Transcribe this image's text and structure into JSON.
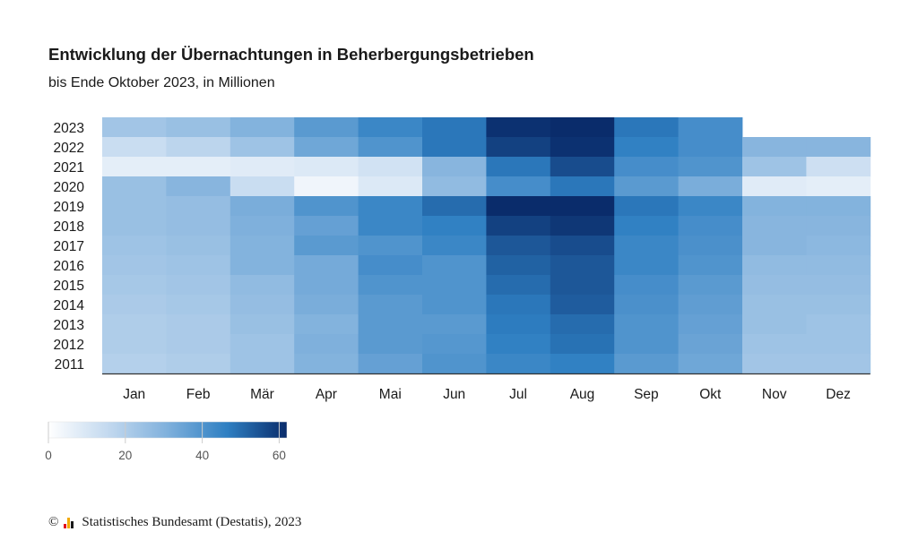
{
  "title": "Entwicklung der Übernachtungen in Beherbergungsbetrieben",
  "subtitle": "bis Ende Oktober 2023, in Millionen",
  "footer": {
    "copyright_symbol": "©",
    "source": "Statistisches Bundesamt (Destatis), 2023",
    "logo_colors": [
      "#e2001a",
      "#f2a900",
      "#1a1a1a"
    ]
  },
  "chart_data": {
    "type": "heatmap",
    "title": "Entwicklung der Übernachtungen in Beherbergungsbetrieben",
    "subtitle": "bis Ende Oktober 2023, in Millionen",
    "x_categories": [
      "Jan",
      "Feb",
      "Mär",
      "Apr",
      "Mai",
      "Jun",
      "Jul",
      "Aug",
      "Sep",
      "Okt",
      "Nov",
      "Dez"
    ],
    "y_categories": [
      "2023",
      "2022",
      "2021",
      "2020",
      "2019",
      "2018",
      "2017",
      "2016",
      "2015",
      "2014",
      "2013",
      "2012",
      "2011"
    ],
    "values": [
      [
        23,
        25,
        30,
        38,
        44,
        48,
        61,
        62,
        48,
        42,
        null,
        null
      ],
      [
        14,
        17,
        24,
        34,
        40,
        48,
        58,
        61,
        46,
        42,
        29,
        29
      ],
      [
        7,
        7,
        8,
        9,
        12,
        29,
        48,
        56,
        42,
        40,
        24,
        13
      ],
      [
        25,
        29,
        14,
        4,
        9,
        27,
        42,
        48,
        38,
        32,
        8,
        7
      ],
      [
        25,
        26,
        32,
        40,
        44,
        50,
        63,
        63,
        48,
        44,
        30,
        30
      ],
      [
        25,
        26,
        31,
        36,
        44,
        46,
        58,
        60,
        46,
        42,
        29,
        29
      ],
      [
        24,
        25,
        30,
        38,
        40,
        44,
        54,
        56,
        44,
        41,
        29,
        28
      ],
      [
        23,
        24,
        30,
        33,
        42,
        40,
        52,
        54,
        44,
        40,
        27,
        27
      ],
      [
        22,
        23,
        27,
        33,
        40,
        40,
        50,
        54,
        42,
        38,
        26,
        26
      ],
      [
        21,
        22,
        26,
        32,
        38,
        40,
        48,
        53,
        41,
        37,
        25,
        25
      ],
      [
        20,
        21,
        25,
        30,
        38,
        38,
        47,
        50,
        40,
        36,
        25,
        24
      ],
      [
        20,
        21,
        24,
        31,
        38,
        39,
        46,
        49,
        40,
        35,
        24,
        24
      ],
      [
        19,
        20,
        24,
        30,
        36,
        40,
        44,
        46,
        38,
        34,
        23,
        23
      ]
    ],
    "colorscale": {
      "min": 0,
      "max": 62,
      "colors": [
        "#ffffff",
        "#c3d9ef",
        "#7fb0dc",
        "#2e7fc2",
        "#0a2c6b"
      ]
    },
    "legend": {
      "position": "bottom-left",
      "ticks": [
        0,
        20,
        40,
        60
      ]
    }
  }
}
